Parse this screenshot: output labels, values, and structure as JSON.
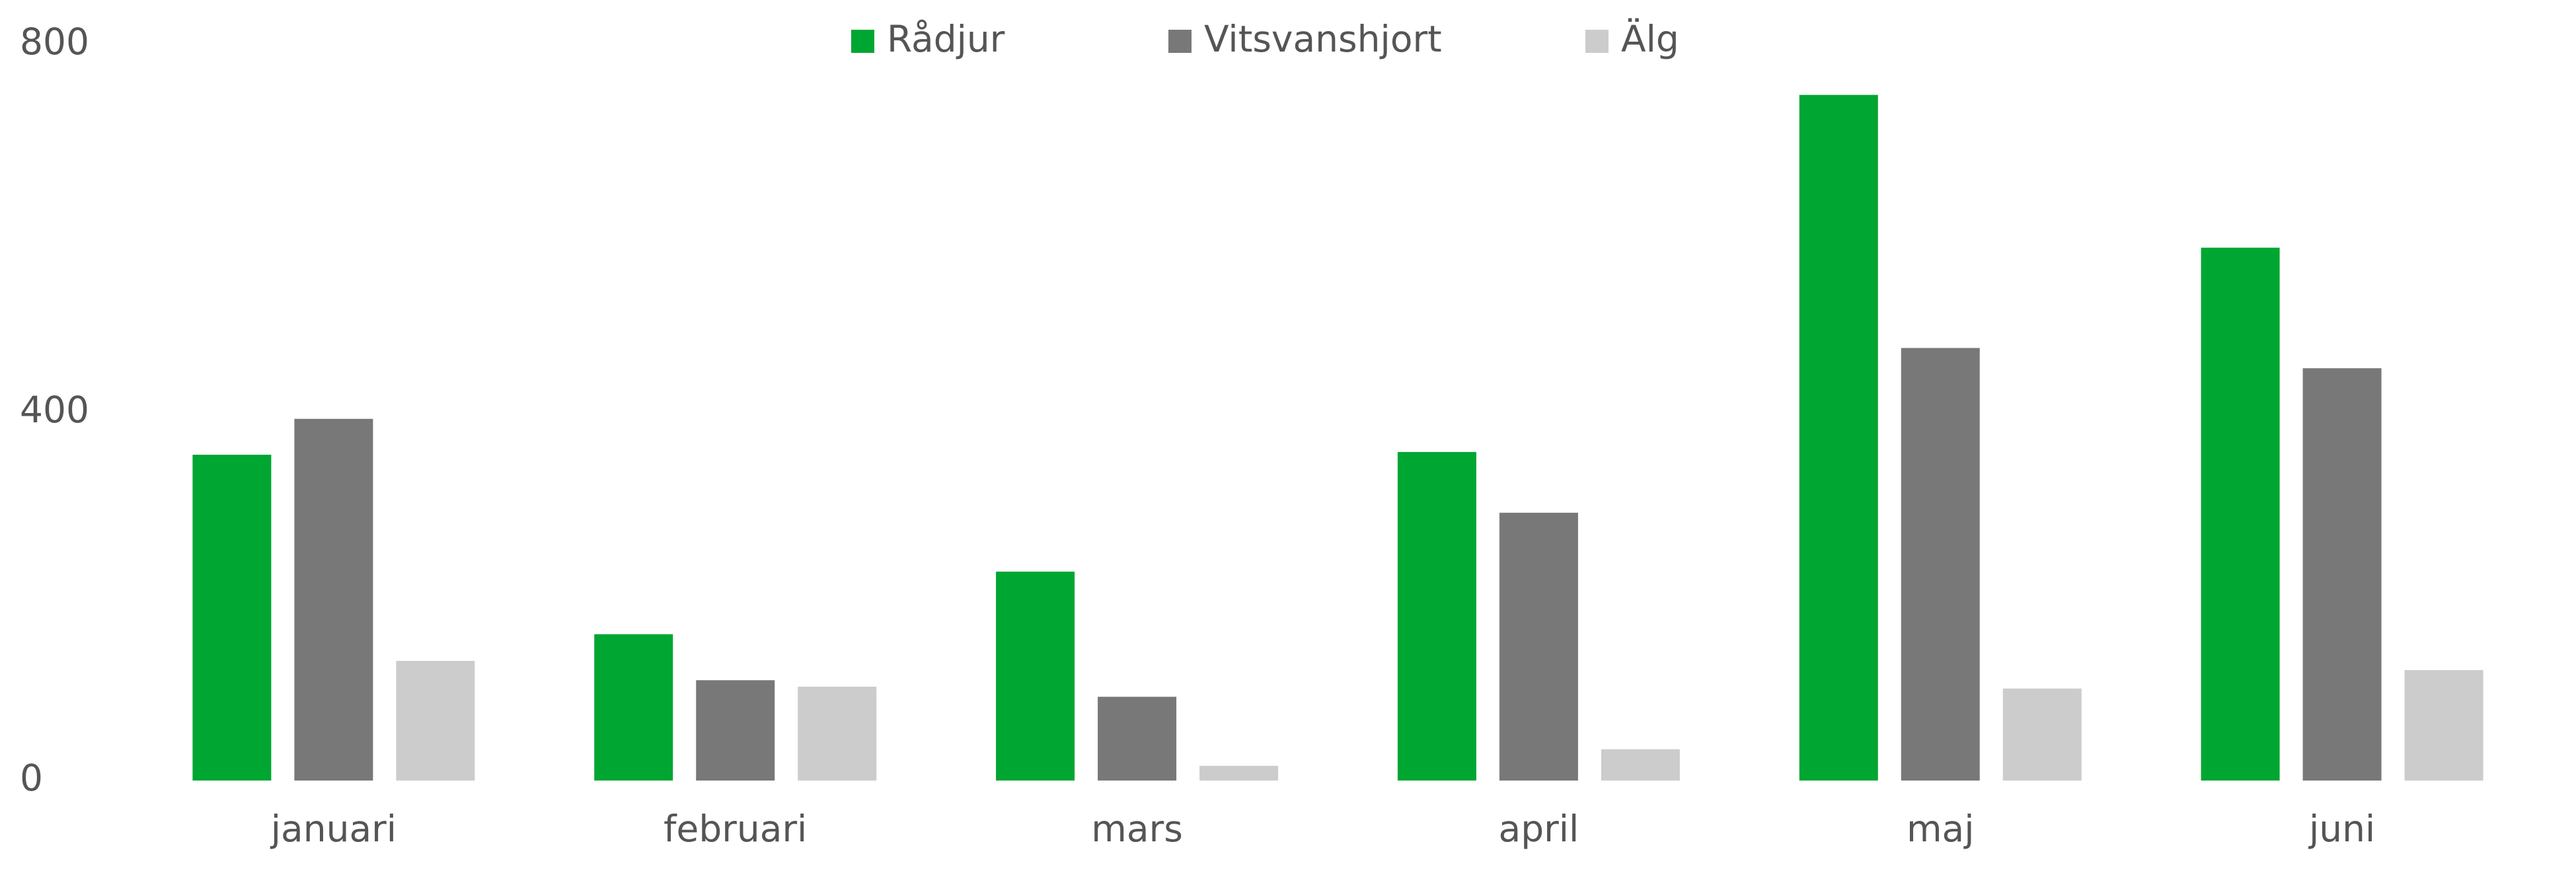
{
  "chart_data": {
    "type": "bar",
    "categories": [
      "januari",
      "februari",
      "mars",
      "april",
      "maj",
      "juni"
    ],
    "series": [
      {
        "name": "Rådjur",
        "color": "#00a632",
        "values": [
          354,
          159,
          227,
          357,
          745,
          579
        ]
      },
      {
        "name": "Vitsvanshjort",
        "color": "#787878",
        "values": [
          393,
          109,
          91,
          291,
          470,
          448
        ]
      },
      {
        "name": "Älg",
        "color": "#cccccc",
        "values": [
          130,
          102,
          16,
          34,
          100,
          120
        ]
      }
    ],
    "ylim": [
      0,
      800
    ],
    "yticks": [
      0,
      400,
      800
    ],
    "grid": false,
    "legend": "top"
  }
}
